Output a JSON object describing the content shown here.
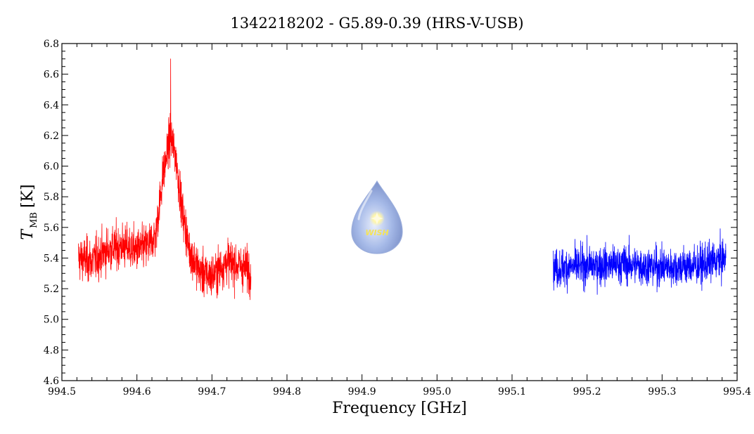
{
  "chart_data": {
    "type": "line",
    "title": "1342218202 - G5.89-0.39 (HRS-V-USB)",
    "xlabel": "Frequency [GHz]",
    "ylabel": {
      "symbol": "T",
      "subscript": "MB",
      "unit": "[K]"
    },
    "xlim": [
      994.5,
      995.4
    ],
    "ylim": [
      4.6,
      6.8
    ],
    "xticks": [
      "994.5",
      "994.6",
      "994.7",
      "994.8",
      "994.9",
      "995.0",
      "995.1",
      "995.2",
      "995.3",
      "995.4"
    ],
    "yticks": [
      "4.6",
      "4.8",
      "5.0",
      "5.2",
      "5.4",
      "5.6",
      "5.8",
      "6.0",
      "6.2",
      "6.4",
      "6.6",
      "6.8"
    ],
    "grid": false,
    "logo": {
      "text": "WISH",
      "icon": "water-drop-logo"
    },
    "series": [
      {
        "color": "#ff0000",
        "x_range": [
          994.522,
          994.752
        ],
        "envelope": [
          [
            994.522,
            5.4
          ],
          [
            994.54,
            5.38
          ],
          [
            994.56,
            5.45
          ],
          [
            994.58,
            5.48
          ],
          [
            994.6,
            5.45
          ],
          [
            994.615,
            5.48
          ],
          [
            994.625,
            5.55
          ],
          [
            994.635,
            5.95
          ],
          [
            994.645,
            6.2
          ],
          [
            994.652,
            6.05
          ],
          [
            994.66,
            5.72
          ],
          [
            994.67,
            5.45
          ],
          [
            994.685,
            5.3
          ],
          [
            994.7,
            5.28
          ],
          [
            994.72,
            5.38
          ],
          [
            994.752,
            5.32
          ]
        ],
        "noise_rms": 0.17,
        "peak": [
          994.645,
          6.7
        ]
      },
      {
        "color": "#0000ff",
        "x_range": [
          995.155,
          995.385
        ],
        "envelope": [
          [
            995.155,
            5.33
          ],
          [
            995.2,
            5.35
          ],
          [
            995.25,
            5.36
          ],
          [
            995.3,
            5.34
          ],
          [
            995.35,
            5.35
          ],
          [
            995.385,
            5.4
          ]
        ],
        "noise_rms": 0.15
      }
    ]
  }
}
